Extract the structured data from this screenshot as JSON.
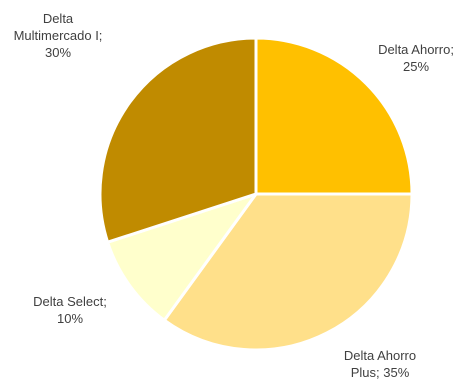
{
  "chart_data": {
    "type": "pie",
    "title": "",
    "slices": [
      {
        "label": "Delta Ahorro",
        "value": 25,
        "color": "#FFC000"
      },
      {
        "label": "Delta Ahorro Plus",
        "value": 35,
        "color": "#FFE08A"
      },
      {
        "label": "Delta Select",
        "value": 10,
        "color": "#FFFFCC"
      },
      {
        "label": "Delta Multimercado I",
        "value": 30,
        "color": "#C08B00"
      }
    ],
    "data_labels": [
      "Delta Ahorro;\n25%",
      "Delta Ahorro\nPlus; 35%",
      "Delta Select;\n10%",
      "Delta\nMultimercado I;\n30%"
    ]
  }
}
